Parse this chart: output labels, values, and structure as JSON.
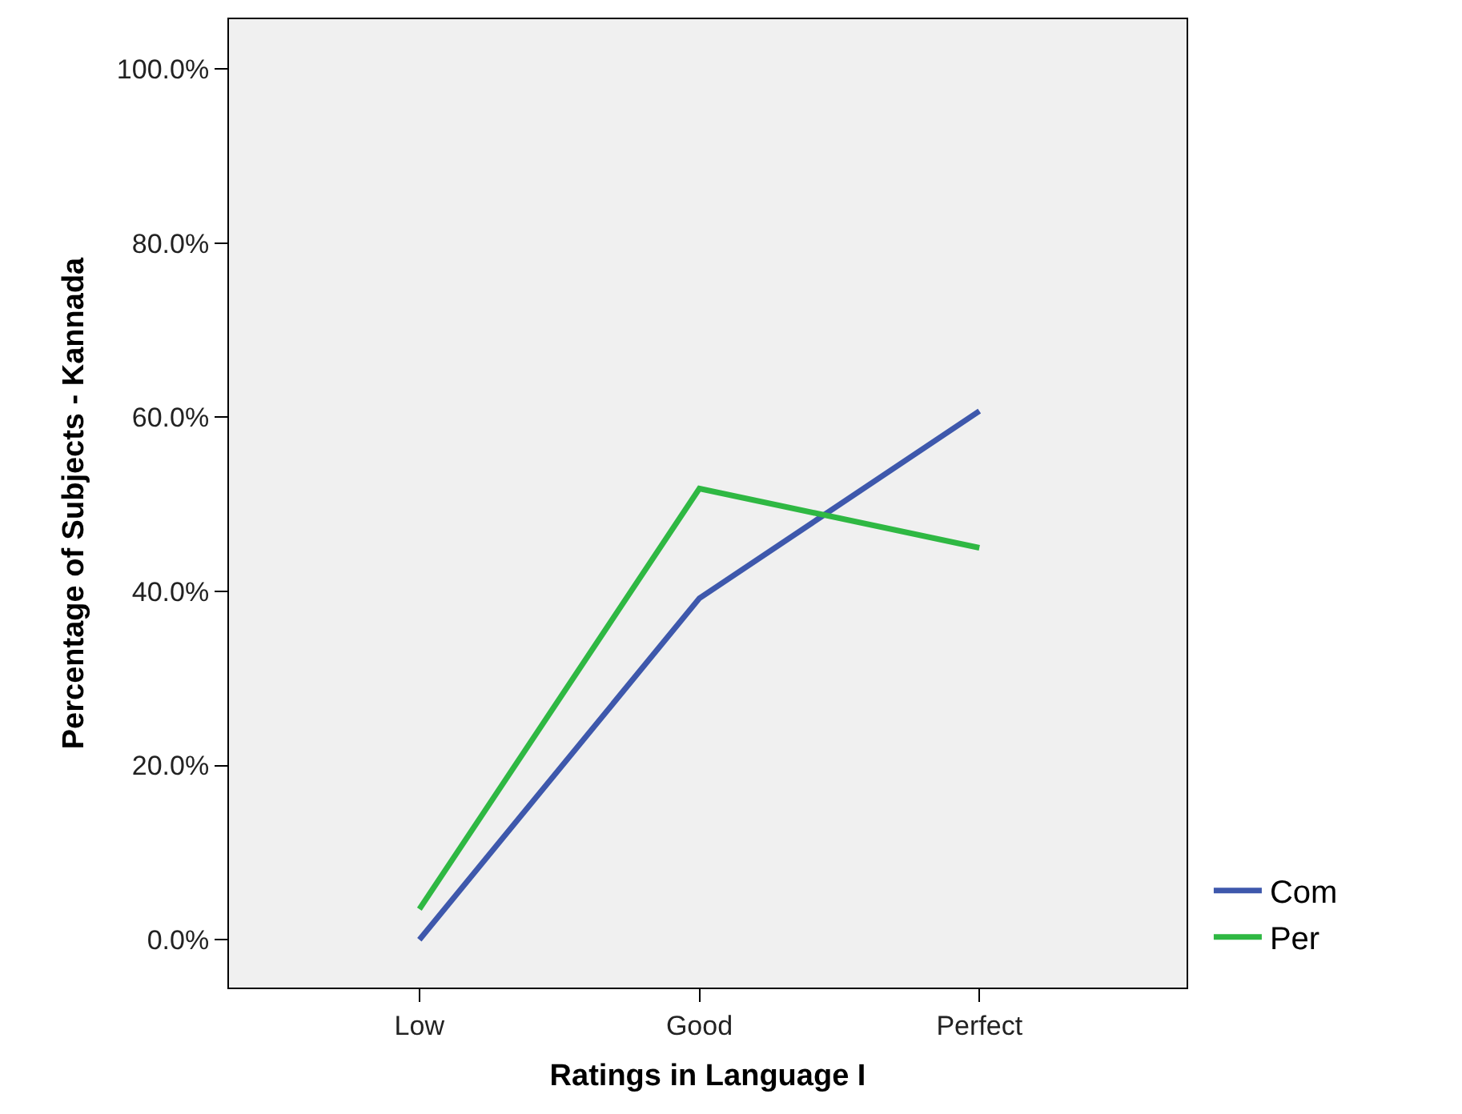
{
  "chart_data": {
    "type": "line",
    "xlabel": "Ratings in Language I",
    "ylabel": "Percentage of Subjects - Kannada",
    "categories": [
      "Low",
      "Good",
      "Perfect"
    ],
    "series": [
      {
        "name": "Com",
        "color": "#3e58ac",
        "values": [
          0.0,
          39.2,
          60.7
        ]
      },
      {
        "name": "Per",
        "color": "#2fb843",
        "values": [
          3.5,
          51.8,
          45.0
        ]
      }
    ],
    "ylim": [
      -5.5,
      105.7
    ],
    "yticks": [
      {
        "value": 0,
        "label": "0.0%"
      },
      {
        "value": 20,
        "label": "20.0%"
      },
      {
        "value": 40,
        "label": "40.0%"
      },
      {
        "value": 60,
        "label": "60.0%"
      },
      {
        "value": 80,
        "label": "80.0%"
      },
      {
        "value": 100,
        "label": "100.0%"
      }
    ],
    "grid": false,
    "legend": "bottom right",
    "marker": "none",
    "line_style": "solid"
  }
}
